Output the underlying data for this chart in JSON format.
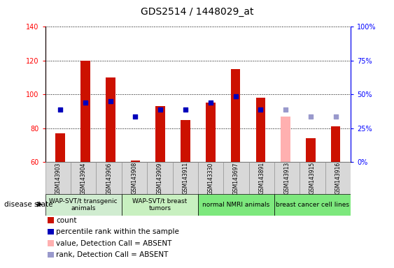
{
  "title": "GDS2514 / 1448029_at",
  "samples": [
    "GSM143903",
    "GSM143904",
    "GSM143906",
    "GSM143908",
    "GSM143909",
    "GSM143911",
    "GSM143330",
    "GSM143697",
    "GSM143891",
    "GSM143913",
    "GSM143915",
    "GSM143916"
  ],
  "count_values": [
    77,
    120,
    110,
    61,
    93,
    85,
    95,
    115,
    98,
    null,
    74,
    81
  ],
  "count_absent_values": [
    null,
    null,
    null,
    null,
    null,
    null,
    null,
    null,
    null,
    87,
    null,
    null
  ],
  "percentile_values": [
    91,
    95,
    96,
    87,
    91,
    91,
    95,
    99,
    91,
    null,
    null,
    null
  ],
  "percentile_absent_values": [
    null,
    null,
    null,
    null,
    null,
    null,
    null,
    null,
    null,
    91,
    87,
    87
  ],
  "ylim_left": [
    60,
    140
  ],
  "ylim_right": [
    0,
    100
  ],
  "yticks_left": [
    60,
    80,
    100,
    120,
    140
  ],
  "yticks_right": [
    0,
    25,
    50,
    75,
    100
  ],
  "ytick_labels_right": [
    "0%",
    "25%",
    "50%",
    "75%",
    "100%"
  ],
  "bar_color_present": "#cc1100",
  "bar_color_absent": "#ffb0b0",
  "dot_color_present": "#0000bb",
  "dot_color_absent": "#9999cc",
  "group_defs": [
    {
      "start": 0,
      "end": 3,
      "color": "#d0ecd0",
      "label": "WAP-SVT/t transgenic\nanimals"
    },
    {
      "start": 3,
      "end": 6,
      "color": "#c8f0c0",
      "label": "WAP-SVT/t breast\ntumors"
    },
    {
      "start": 6,
      "end": 9,
      "color": "#7de87d",
      "label": "normal NMRI animals"
    },
    {
      "start": 9,
      "end": 12,
      "color": "#7de87d",
      "label": "breast cancer cell lines"
    }
  ],
  "disease_state_label": "disease state",
  "legend_data": [
    {
      "color": "#cc1100",
      "label": "count"
    },
    {
      "color": "#0000bb",
      "label": "percentile rank within the sample"
    },
    {
      "color": "#ffb0b0",
      "label": "value, Detection Call = ABSENT"
    },
    {
      "color": "#9999cc",
      "label": "rank, Detection Call = ABSENT"
    }
  ],
  "title_fontsize": 10,
  "tick_fontsize": 7,
  "sample_fontsize": 5.5,
  "group_fontsize": 6.5,
  "legend_fontsize": 7.5
}
